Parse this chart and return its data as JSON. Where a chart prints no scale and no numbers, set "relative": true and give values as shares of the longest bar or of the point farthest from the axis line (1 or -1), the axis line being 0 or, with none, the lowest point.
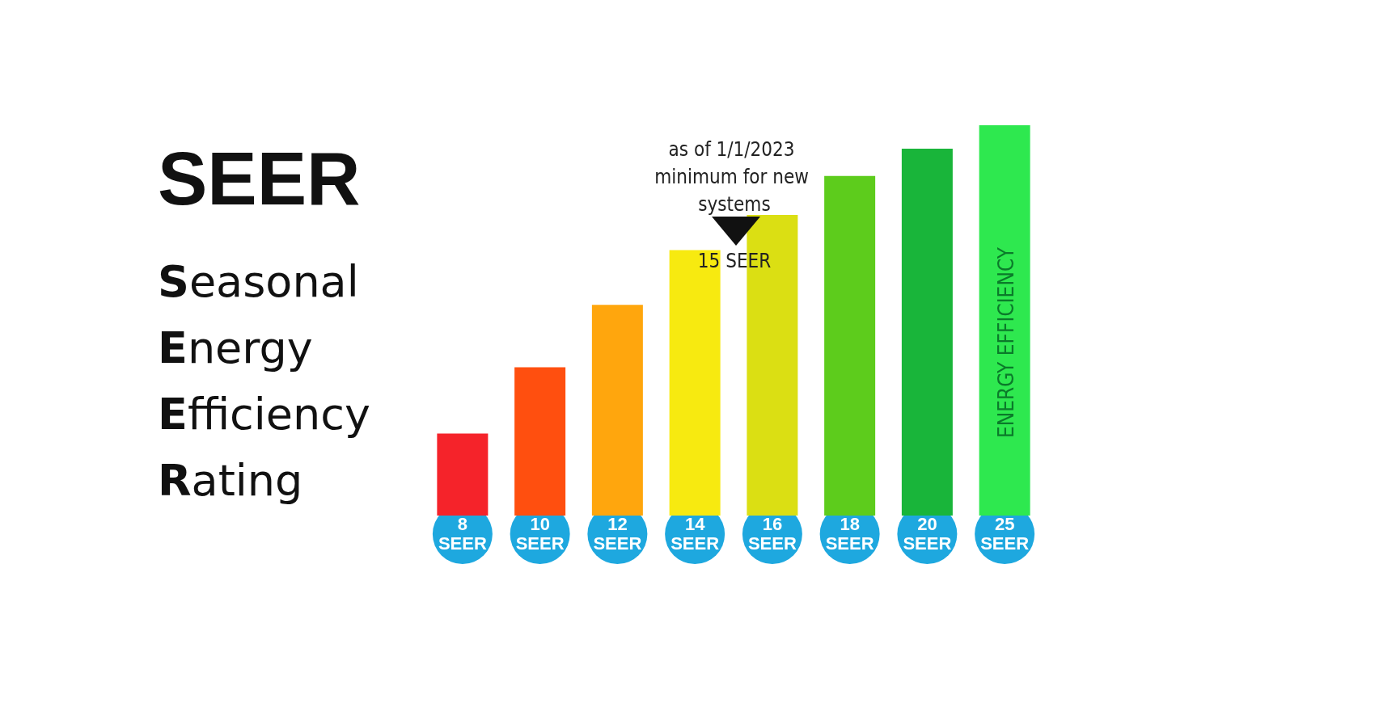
{
  "chart_data": {
    "type": "bar",
    "title": "SEER",
    "subtitle": "Seasonal Energy Efficiency Rating",
    "categories": [
      "8 SEER",
      "10 SEER",
      "12 SEER",
      "14 SEER",
      "16 SEER",
      "18 SEER",
      "20 SEER",
      "25 SEER"
    ],
    "values": [
      0.21,
      0.38,
      0.54,
      0.68,
      0.77,
      0.87,
      0.94,
      1
    ],
    "colors": [
      "#f5232a",
      "#ff4f0f",
      "#ffa60d",
      "#f7ea10",
      "#dbdf13",
      "#5dcc1c",
      "#19b53a",
      "#2ee84f"
    ],
    "relative": true,
    "annotations": [
      "as of 1/1/2023 minimum for new systems",
      "15 SEER",
      "ENERGY EFFICIENCY"
    ]
  }
}
